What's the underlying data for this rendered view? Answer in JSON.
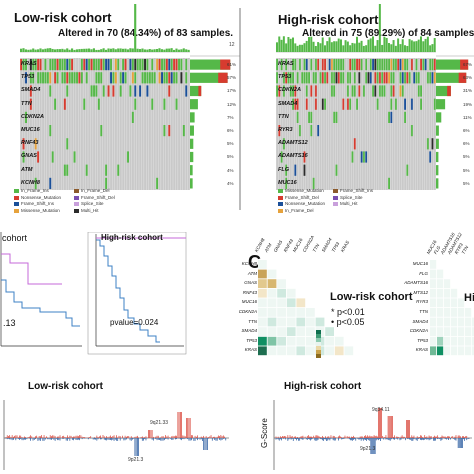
{
  "panel_a": {
    "low": {
      "title": "Low-risk cohort",
      "summary": "Altered in 70 (84.34%) of 83 samples.",
      "top_axis_max": "12",
      "genes": [
        "KRAS",
        "TP53",
        "SMAD4",
        "TTN",
        "CDKN2A",
        "MUC16",
        "RNF43",
        "GNAS",
        "ATM",
        "KCNH8"
      ],
      "pct": [
        "61%",
        "57%",
        "17%",
        "12%",
        "7%",
        "6%",
        "5%",
        "5%",
        "4%",
        "4%"
      ],
      "legend": [
        "In_Frame_Ins",
        "Nonsense_Mutation",
        "Frame_Shift_Ins",
        "Missense_Mutation",
        "In_Frame_Del",
        "Frame_Shift_Del",
        "Splice_Site",
        "Multi_Hit"
      ]
    },
    "high": {
      "title": "High-risk cohort",
      "summary": "Altered in 75 (89.29%) of 84 samples.",
      "genes": [
        "KRAS",
        "TP53",
        "CDKN2A",
        "SMAD4",
        "TTN",
        "RYR3",
        "ADAMTS12",
        "ADAMTS16",
        "FLG",
        "MUC16"
      ],
      "pct": [
        "67%",
        "63%",
        "31%",
        "19%",
        "11%",
        "6%",
        "6%",
        "5%",
        "5%",
        "5%"
      ],
      "legend": [
        "Missense_Mutation",
        "Frame_Shift_Del",
        "Nonsense_Mutation",
        "In_Frame_Del",
        "Frame_Shift_Ins",
        "Splice_Site",
        "Multi_Hit"
      ]
    }
  },
  "panel_b": {
    "left_title": "cohort",
    "left_pvalue": ".13",
    "right_title": "High-risk cohort",
    "right_pvalue": "pvalue=0.024"
  },
  "panel_c": {
    "letter": "C",
    "label": "Low-risk cohort",
    "sig1": "* p<0.01",
    "sig2": "• p<0.05",
    "right_label": "Hi",
    "low_genes": [
      "KCNH8",
      "ATM",
      "GNAS",
      "RNF43",
      "MUC16",
      "CDKN2A",
      "TTN",
      "SMAD4",
      "TP53",
      "KRAS"
    ],
    "high_genes": [
      "MUC16",
      "FLG",
      "ADAMTS16",
      "ADAMTS12",
      "RYR3",
      "TTN",
      "SMAD4",
      "CDKN2A",
      "TP53",
      "KRAS"
    ]
  },
  "panel_d": {
    "low_title": "Low-risk cohort",
    "high_title": "High-risk cohort",
    "ylabel": "G-Score",
    "low_peaks": [
      "9q21.33",
      "9p21.3"
    ],
    "high_peaks": [
      "9q34.11",
      "9p21.3"
    ]
  },
  "colors": {
    "missense": "#55b848",
    "truncating": "#d73b2f",
    "frameshift": "#1a4f99",
    "multi": "#2b2b2b",
    "surv_low": "#c56ad8",
    "surv_high": "#3d80c4",
    "heat_pos": "#0f8f62",
    "heat_neg": "#c09a3b"
  }
}
